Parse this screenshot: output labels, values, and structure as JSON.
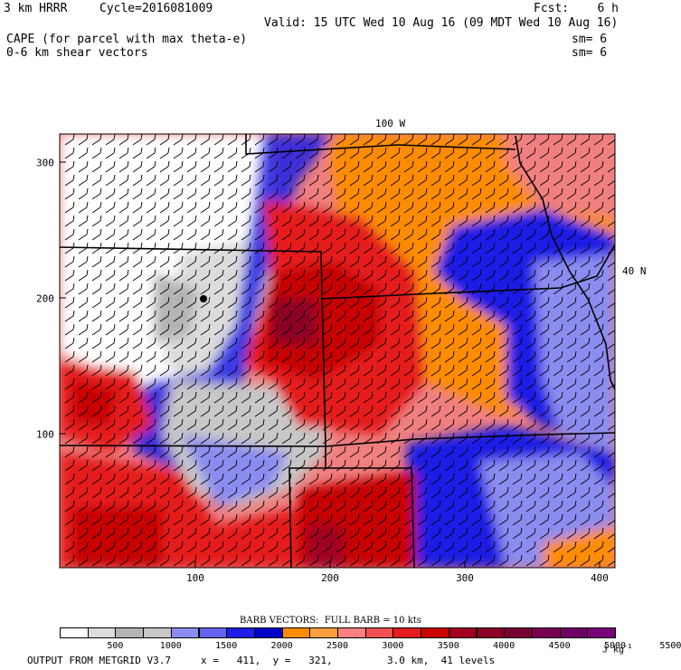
{
  "header": {
    "model": "3 km HRRR",
    "cycle": "Cycle=2016081009",
    "fcst": "Fcst:    6 h",
    "valid": "Valid: 15 UTC Wed 10 Aug 16 (09 MDT Wed 10 Aug 16)",
    "field1": "CAPE (for parcel with max theta-e)",
    "field2": "0-6 km shear vectors",
    "sm1": "sm= 6",
    "sm2": "sm= 6"
  },
  "map": {
    "x_ticks": [
      "100",
      "200",
      "300",
      "400"
    ],
    "y_ticks": [
      "300",
      "200",
      "100"
    ],
    "lon_label": "100 W",
    "lat_label": "40 N"
  },
  "legend": {
    "title": "BARB VECTORS:  FULL BARB = 10 kts",
    "colors": [
      "#ffffff",
      "#dcdcdc",
      "#b4b4b4",
      "#c8c8c8",
      "#8c8cf0",
      "#6464f0",
      "#1e1ee6",
      "#0000c8",
      "#ff8c00",
      "#ffa03c",
      "#ff8080",
      "#f05050",
      "#e61e1e",
      "#c80000",
      "#a00020",
      "#8c0028",
      "#780030",
      "#780050",
      "#6e0064",
      "#780078"
    ],
    "labels": [
      "500",
      "1000",
      "1500",
      "2000",
      "2500",
      "3000",
      "3500",
      "4000",
      "4500",
      "5000",
      "5500"
    ],
    "units": "J kg",
    "units_exp": "-1"
  },
  "footer": {
    "source": "OUTPUT FROM METGRID V3.7",
    "xy": "x =   411,  y =   321,",
    "res": "3.0 km,  41 levels"
  }
}
